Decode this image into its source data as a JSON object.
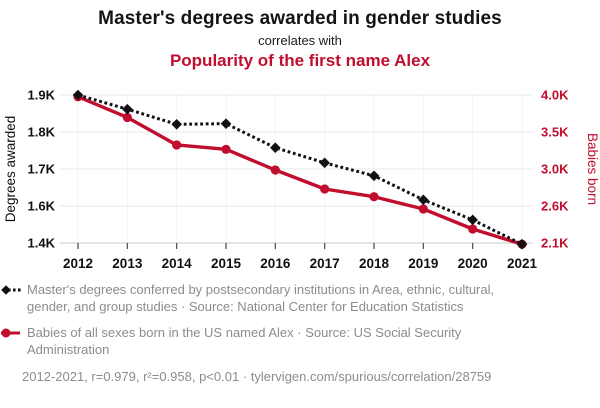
{
  "titles": {
    "main": "Master's degrees awarded in gender studies",
    "connector": "correlates with",
    "secondary": "Popularity of the first name Alex"
  },
  "colors": {
    "accent_red": "#C10E2F",
    "series_black": "#111111",
    "text_gray": "#8C8C8C",
    "grid_horizontal": "#E7E7E7",
    "grid_vertical": "#F3F3F3",
    "axis_line": "#C9C9C9",
    "tick_mark": "#555555"
  },
  "chart_data": {
    "type": "line",
    "categories": [
      "2012",
      "2013",
      "2014",
      "2015",
      "2016",
      "2017",
      "2018",
      "2019",
      "2020",
      "2021"
    ],
    "series": [
      {
        "name": "Master's degrees conferred in Area, ethnic, cultural, gender, and group studies",
        "axis": "left",
        "line_style": "dotted",
        "marker": "diamond",
        "color": "#111111",
        "values": [
          1920,
          1874,
          1825,
          1827,
          1749,
          1700,
          1658,
          1580,
          1515,
          1436
        ]
      },
      {
        "name": "Babies of all sexes born in the US named Alex",
        "axis": "right",
        "line_style": "solid",
        "marker": "circle",
        "color": "#C10E2F",
        "values": [
          3958,
          3695,
          3345,
          3290,
          3027,
          2786,
          2688,
          2532,
          2278,
          2084
        ]
      }
    ],
    "left_axis": {
      "label": "Degrees awarded",
      "tick_labels": [
        "1.9K",
        "1.8K",
        "1.7K",
        "1.6K",
        "1.4K"
      ],
      "min": 1440,
      "max": 1920
    },
    "right_axis": {
      "label": "Babies born",
      "tick_labels": [
        "4.0K",
        "3.5K",
        "3.0K",
        "2.6K",
        "2.1K"
      ],
      "min": 2100,
      "max": 3980
    },
    "grid": true,
    "legend_position": "bottom"
  },
  "legend": {
    "items": [
      {
        "label": "Master's degrees conferred by postsecondary institutions in Area, ethnic, cultural, gender, and group studies · Source: National Center for Education Statistics"
      },
      {
        "label": "Babies of all sexes born in the US named Alex · Source: US Social Security Administration"
      }
    ],
    "footnote": "2012-2021, r=0.979, r²=0.958, p<0.01 · tylervigen.com/spurious/correlation/28759"
  }
}
